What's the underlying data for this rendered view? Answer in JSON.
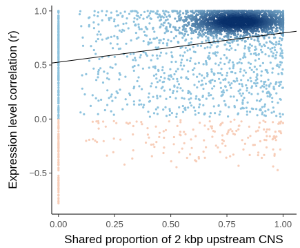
{
  "chart_data": {
    "type": "scatter",
    "title": "",
    "xlabel": "Shared proportion of 2 kbp upstream CNS",
    "ylabel": "Expression level correlation (r)",
    "xlim": [
      -0.03,
      1.06
    ],
    "ylim": [
      -0.88,
      1.05
    ],
    "x_ticks": [
      0.0,
      0.25,
      0.5,
      0.75,
      1.0
    ],
    "x_tick_labels": [
      "0.00",
      "0.25",
      "0.50",
      "0.75",
      "1.00"
    ],
    "y_ticks": [
      -0.5,
      0.0,
      0.5,
      1.0
    ],
    "y_tick_labels": [
      "−0.5",
      "0.0",
      "0.5",
      "1.0"
    ],
    "grid": false,
    "legend": "none",
    "colors": {
      "positive_low": "#8ec3de",
      "positive_high": "#08306b",
      "negative": "#f7cdb8",
      "trend_line": "#000000",
      "axis": "#000000"
    },
    "trend_line": {
      "x": [
        -0.03,
        1.06
      ],
      "y": [
        0.518,
        0.812
      ]
    },
    "point_clusters": [
      {
        "desc": "points at x=0, positive r",
        "x": [
          0.0,
          0.0
        ],
        "y": [
          0.0,
          1.0
        ],
        "count": 220,
        "color": "positive"
      },
      {
        "desc": "points at x=0, negative r",
        "x": [
          0.0,
          0.0
        ],
        "y": [
          -0.8,
          0.0
        ],
        "count": 90,
        "color": "negative"
      },
      {
        "desc": "dense high-correlation core",
        "x_center": 0.8,
        "y_center": 0.9,
        "x_spread": 0.11,
        "y_spread": 0.06,
        "count": 1700,
        "color": "positive"
      },
      {
        "desc": "broad positive spread",
        "x": [
          0.08,
          1.0
        ],
        "y": [
          0.02,
          1.0
        ],
        "count": 1100,
        "color": "positive"
      },
      {
        "desc": "scattered negative points",
        "x": [
          0.08,
          1.0
        ],
        "y": [
          -0.5,
          0.0
        ],
        "count": 170,
        "color": "negative"
      }
    ]
  }
}
